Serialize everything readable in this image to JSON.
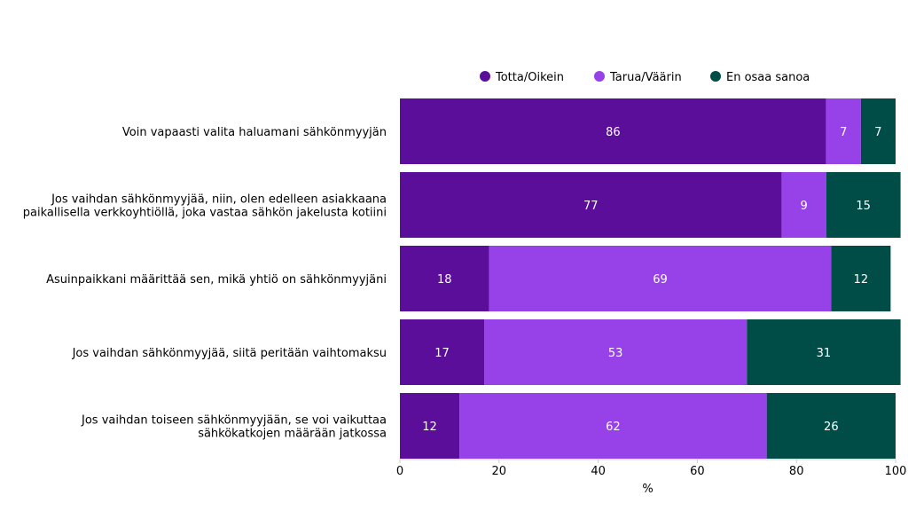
{
  "chart_data": {
    "type": "bar",
    "orientation": "horizontal",
    "stacked": true,
    "categories": [
      [
        "Voin vapaasti valita haluamani sähkönmyyjän"
      ],
      [
        "Jos vaihdan sähkönmyyjää, niin, olen edelleen asiakkaana",
        "paikallisella verkkoyhtiöllä, joka vastaa sähkön jakelusta kotiini"
      ],
      [
        "Asuinpaikkani määrittää sen, mikä yhtiö on sähkönmyyjäni"
      ],
      [
        "Jos vaihdan sähkönmyyjää, siitä peritään vaihtomaksu"
      ],
      [
        "Jos vaihdan toiseen sähkönmyyjään, se voi vaikuttaa",
        "sähkökatkojen määrään jatkossa"
      ]
    ],
    "series": [
      {
        "name": "Totta/Oikein",
        "color": "#5a0e99",
        "values": [
          86,
          77,
          18,
          17,
          12
        ]
      },
      {
        "name": "Tarua/Väärin",
        "color": "#9742e8",
        "values": [
          7,
          9,
          69,
          53,
          62
        ]
      },
      {
        "name": "En osaa sanoa",
        "color": "#004d48",
        "values": [
          7,
          15,
          12,
          31,
          26
        ]
      }
    ],
    "xlabel": "%",
    "xlim": [
      0,
      100
    ],
    "xticks": [
      0,
      20,
      40,
      60,
      80,
      100
    ],
    "legend_position": "top-right",
    "grid": false,
    "label_color": "#ffffff",
    "text_color": "#000000"
  }
}
